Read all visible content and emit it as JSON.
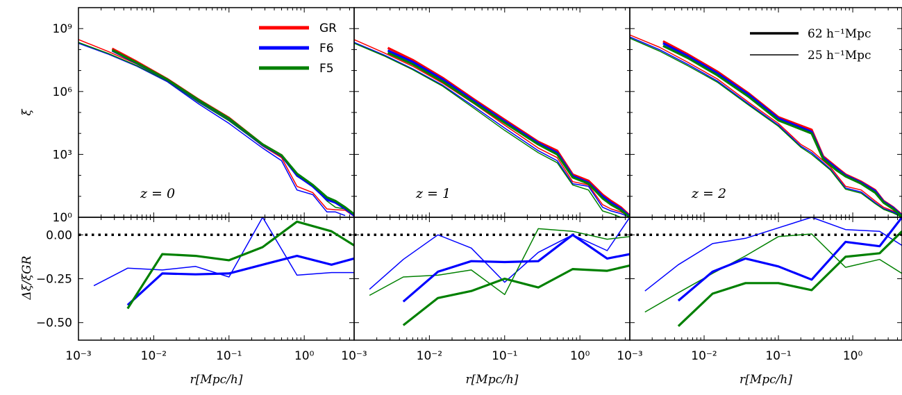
{
  "chart_data": {
    "type": "line",
    "layout": "3 columns x 2 rows, shared x axis per column, shared y axis per row",
    "x_axis": {
      "label": "r[Mpc/h]",
      "scale": "log",
      "range": [
        0.001,
        4.6
      ],
      "ticks": [
        "10⁻³",
        "10⁻²",
        "10⁻¹",
        "10⁰"
      ]
    },
    "top_y_axis": {
      "label": "ξ",
      "scale": "log",
      "range": [
        1,
        10000000000.0
      ],
      "ticks": [
        "10⁹",
        "10⁶",
        "10³",
        "10⁰"
      ]
    },
    "bottom_y_axis": {
      "label": "Δξ/ξGR",
      "scale": "linear",
      "range": [
        -0.6,
        0.1
      ],
      "ticks": [
        "0.00",
        "−0.25",
        "−0.50"
      ]
    },
    "reference_line": {
      "y": 0,
      "style": "dotted"
    },
    "colors": {
      "GR": "#ff0000",
      "F6": "#0000ff",
      "F5": "#008000"
    },
    "legend_models": [
      "GR",
      "F6",
      "F5"
    ],
    "legend_boxes": [
      "62 h⁻¹Mpc",
      "25 h⁻¹Mpc"
    ],
    "legend_style": {
      "62 h⁻¹Mpc": "thick",
      "25 h⁻¹Mpc": "thin"
    },
    "panels": [
      {
        "label": "z = 0",
        "xi": [
          {
            "model": "GR",
            "box": "25",
            "x": [
              0.001,
              0.0025,
              0.006,
              0.015,
              0.04,
              0.1,
              0.28,
              0.5,
              0.8,
              1.3,
              2.0,
              2.6,
              3.5,
              4.6
            ],
            "y": [
              300000000.0,
              80000000.0,
              20000000.0,
              3500000.0,
              350000.0,
              45000.0,
              2500.0,
              700,
              30,
              15,
              2.5,
              2.3,
              2.2,
              1.1
            ]
          },
          {
            "model": "F6",
            "box": "25",
            "x": [
              0.001,
              0.0025,
              0.006,
              0.015,
              0.04,
              0.1,
              0.28,
              0.5,
              0.8,
              1.3,
              2.0,
              2.6,
              3.5
            ],
            "y": [
              200000000.0,
              60000000.0,
              16000000.0,
              3000000.0,
              250000.0,
              30000.0,
              2000.0,
              500,
              20,
              12,
              1.8,
              1.8,
              1.2
            ]
          },
          {
            "model": "F5",
            "box": "25",
            "x": [
              0.001,
              0.0025,
              0.006,
              0.015,
              0.04,
              0.1,
              0.28,
              0.5,
              0.8,
              1.3,
              2.0,
              2.6,
              3.5,
              4.6
            ],
            "y": [
              220000000.0,
              65000000.0,
              17000000.0,
              3200000.0,
              300000.0,
              40000.0,
              2600.0,
              800,
              90,
              30,
              6,
              3,
              2.5,
              1.2
            ]
          },
          {
            "model": "GR",
            "box": "62",
            "x": [
              0.0028,
              0.006,
              0.015,
              0.04,
              0.1,
              0.28,
              0.5,
              0.8,
              1.3,
              2.0,
              2.6,
              3.5,
              4.6
            ],
            "y": [
              110000000.0,
              26000000.0,
              4000000.0,
              400000.0,
              55000.0,
              3000.0,
              900,
              110,
              32,
              8,
              5.5,
              2.8,
              1.3
            ]
          },
          {
            "model": "F6",
            "box": "62",
            "x": [
              0.0028,
              0.006,
              0.015,
              0.04,
              0.1,
              0.28,
              0.5,
              0.8,
              1.3,
              2.0,
              2.6,
              3.5,
              4.6
            ],
            "y": [
              90000000.0,
              22000000.0,
              3600000.0,
              360000.0,
              50000.0,
              2800.0,
              850,
              100,
              30,
              7,
              5,
              2.6,
              1.2
            ]
          },
          {
            "model": "F5",
            "box": "62",
            "x": [
              0.0028,
              0.006,
              0.015,
              0.04,
              0.1,
              0.28,
              0.5,
              0.8,
              1.3,
              2.0,
              2.6,
              3.5,
              4.6
            ],
            "y": [
              95000000.0,
              23000000.0,
              3800000.0,
              380000.0,
              52000.0,
              3000.0,
              900,
              120,
              35,
              9,
              6,
              3,
              1.4
            ]
          }
        ],
        "delta": [
          {
            "model": "F6",
            "box": "25",
            "x": [
              0.0016,
              0.0045,
              0.013,
              0.036,
              0.1,
              0.28,
              0.8,
              2.3,
              4.6
            ],
            "y": [
              -0.29,
              -0.19,
              -0.2,
              -0.18,
              -0.24,
              0.1,
              -0.23,
              -0.215,
              -0.215
            ]
          },
          {
            "model": "F6",
            "box": "62",
            "x": [
              0.0045,
              0.013,
              0.036,
              0.1,
              0.28,
              0.8,
              2.3,
              4.6
            ],
            "y": [
              -0.4,
              -0.22,
              -0.225,
              -0.22,
              -0.17,
              -0.12,
              -0.17,
              -0.135
            ]
          },
          {
            "model": "F5",
            "box": "62",
            "x": [
              0.0045,
              0.013,
              0.036,
              0.1,
              0.28,
              0.8,
              2.3,
              4.6
            ],
            "y": [
              -0.42,
              -0.11,
              -0.12,
              -0.145,
              -0.07,
              0.075,
              0.02,
              -0.06
            ]
          }
        ]
      },
      {
        "label": "z = 1",
        "xi": [
          {
            "model": "GR",
            "box": "25",
            "x": [
              0.001,
              0.0025,
              0.006,
              0.015,
              0.04,
              0.1,
              0.28,
              0.5,
              0.8,
              1.3,
              2.0,
              2.6,
              3.5,
              4.6
            ],
            "y": [
              300000000.0,
              70000000.0,
              16000000.0,
              2500000.0,
              250000.0,
              25000.0,
              2000.0,
              700,
              50,
              35,
              4,
              2.5,
              1.8,
              1.1
            ]
          },
          {
            "model": "F6",
            "box": "25",
            "x": [
              0.001,
              0.0025,
              0.006,
              0.015,
              0.04,
              0.1,
              0.28,
              0.5,
              0.8,
              1.3,
              2.0,
              2.6,
              3.5,
              4.6
            ],
            "y": [
              220000000.0,
              55000000.0,
              12000000.0,
              2000000.0,
              180000.0,
              18000.0,
              1500.0,
              500,
              40,
              30,
              3,
              2,
              1.5,
              1
            ]
          },
          {
            "model": "F5",
            "box": "25",
            "x": [
              0.001,
              0.0025,
              0.006,
              0.015,
              0.04,
              0.1,
              0.28,
              0.5,
              0.8,
              1.3,
              2.0,
              2.6,
              3.5
            ],
            "y": [
              200000000.0,
              50000000.0,
              11000000.0,
              1800000.0,
              150000.0,
              14000.0,
              1200.0,
              400,
              35,
              20,
              2,
              1.5,
              1
            ]
          },
          {
            "model": "GR",
            "box": "62",
            "x": [
              0.0028,
              0.006,
              0.015,
              0.04,
              0.1,
              0.28,
              0.5,
              0.8,
              1.3,
              2.0,
              2.6,
              3.5,
              4.6
            ],
            "y": [
              120000000.0,
              32000000.0,
              4500000.0,
              400000.0,
              45000.0,
              4000.0,
              1500.0,
              110,
              55,
              12,
              6,
              3,
              1.2
            ]
          },
          {
            "model": "F6",
            "box": "62",
            "x": [
              0.0028,
              0.006,
              0.015,
              0.04,
              0.1,
              0.28,
              0.5,
              0.8,
              1.3,
              2.0,
              2.6,
              3.5,
              4.6
            ],
            "y": [
              90000000.0,
              26000000.0,
              3800000.0,
              340000.0,
              38000.0,
              3500.0,
              1200.0,
              95,
              45,
              10,
              5,
              2.6,
              1.1
            ]
          },
          {
            "model": "F5",
            "box": "62",
            "x": [
              0.0028,
              0.006,
              0.015,
              0.04,
              0.1,
              0.28,
              0.5,
              0.8,
              1.3,
              2.0,
              2.6,
              3.5,
              4.6
            ],
            "y": [
              70000000.0,
              20000000.0,
              3000000.0,
              280000.0,
              32000.0,
              3000.0,
              1000.0,
              80,
              40,
              8,
              4,
              2.2,
              1
            ]
          }
        ],
        "delta": [
          {
            "model": "F6",
            "box": "25",
            "x": [
              0.0016,
              0.0045,
              0.013,
              0.036,
              0.1,
              0.28,
              0.8,
              2.3,
              4.6
            ],
            "y": [
              -0.31,
              -0.14,
              0.0,
              -0.075,
              -0.27,
              -0.1,
              0.0,
              -0.09,
              0.1
            ]
          },
          {
            "model": "F5",
            "box": "25",
            "x": [
              0.0016,
              0.0045,
              0.013,
              0.036,
              0.1,
              0.28,
              0.8,
              2.3,
              4.6
            ],
            "y": [
              -0.345,
              -0.24,
              -0.23,
              -0.2,
              -0.34,
              0.035,
              0.02,
              -0.025,
              -0.01
            ]
          },
          {
            "model": "F6",
            "box": "62",
            "x": [
              0.0045,
              0.013,
              0.036,
              0.1,
              0.28,
              0.8,
              2.3,
              4.6
            ],
            "y": [
              -0.38,
              -0.21,
              -0.15,
              -0.155,
              -0.15,
              0.0,
              -0.135,
              -0.11
            ]
          },
          {
            "model": "F5",
            "box": "62",
            "x": [
              0.0045,
              0.013,
              0.036,
              0.1,
              0.28,
              0.8,
              2.3,
              4.6
            ],
            "y": [
              -0.515,
              -0.36,
              -0.32,
              -0.25,
              -0.3,
              -0.195,
              -0.205,
              -0.175
            ]
          }
        ]
      },
      {
        "label": "z = 2",
        "xi": [
          {
            "model": "GR",
            "box": "25",
            "x": [
              0.001,
              0.0025,
              0.006,
              0.015,
              0.04,
              0.1,
              0.2,
              0.28,
              0.5,
              0.8,
              1.3,
              2.0,
              2.6,
              3.5,
              4.6
            ],
            "y": [
              500000000.0,
              130000000.0,
              25000000.0,
              4000000.0,
              300000.0,
              30000.0,
              3000.0,
              1500.0,
              250,
              30,
              20,
              6,
              3,
              2,
              1.2
            ]
          },
          {
            "model": "F6",
            "box": "25",
            "x": [
              0.001,
              0.0025,
              0.006,
              0.015,
              0.04,
              0.1,
              0.2,
              0.28,
              0.5,
              0.8,
              1.3,
              2.0,
              2.6,
              3.5,
              4.6
            ],
            "y": [
              400000000.0,
              100000000.0,
              20000000.0,
              3200000.0,
              250000.0,
              25000.0,
              2500.0,
              1200.0,
              200,
              25,
              16,
              5,
              2.6,
              1.8,
              1.1
            ]
          },
          {
            "model": "F5",
            "box": "25",
            "x": [
              0.001,
              0.0025,
              0.006,
              0.015,
              0.04,
              0.1,
              0.2,
              0.28,
              0.5,
              0.8,
              1.3,
              2.0,
              2.6,
              3.5,
              4.6
            ],
            "y": [
              350000000.0,
              85000000.0,
              17000000.0,
              2800000.0,
              220000.0,
              22000.0,
              2200.0,
              1000.0,
              180,
              22,
              14,
              4.5,
              2.4,
              1.6,
              1
            ]
          },
          {
            "model": "GR",
            "box": "62",
            "x": [
              0.0028,
              0.006,
              0.015,
              0.04,
              0.1,
              0.28,
              0.4,
              0.6,
              0.8,
              1.3,
              2.0,
              2.6,
              3.5,
              4.6
            ],
            "y": [
              250000000.0,
              60000000.0,
              9000000.0,
              800000.0,
              60000.0,
              15000.0,
              800,
              250,
              110,
              50,
              20,
              6,
              3,
              1.3
            ]
          },
          {
            "model": "F6",
            "box": "62",
            "x": [
              0.0028,
              0.006,
              0.015,
              0.04,
              0.1,
              0.28,
              0.4,
              0.6,
              0.8,
              1.3,
              2.0,
              2.6,
              3.5,
              4.6
            ],
            "y": [
              200000000.0,
              50000000.0,
              7500000.0,
              700000.0,
              52000.0,
              12000.0,
              700,
              220,
              100,
              45,
              18,
              5.5,
              2.8,
              1.2
            ]
          },
          {
            "model": "F5",
            "box": "62",
            "x": [
              0.0028,
              0.006,
              0.015,
              0.04,
              0.1,
              0.28,
              0.4,
              0.6,
              0.8,
              1.3,
              2.0,
              2.6,
              3.5,
              4.6
            ],
            "y": [
              150000000.0,
              40000000.0,
              6000000.0,
              550000.0,
              42000.0,
              10000.0,
              600,
              180,
              90,
              40,
              15,
              5,
              2.5,
              1.1
            ]
          }
        ],
        "delta": [
          {
            "model": "F6",
            "box": "25",
            "x": [
              0.0016,
              0.0045,
              0.013,
              0.036,
              0.1,
              0.28,
              0.8,
              2.3,
              4.6
            ],
            "y": [
              -0.32,
              -0.17,
              -0.05,
              -0.02,
              0.04,
              0.1,
              0.03,
              0.02,
              -0.06
            ]
          },
          {
            "model": "F5",
            "box": "25",
            "x": [
              0.0016,
              0.0045,
              0.013,
              0.036,
              0.1,
              0.28,
              0.8,
              2.3,
              4.6
            ],
            "y": [
              -0.44,
              -0.33,
              -0.22,
              -0.12,
              -0.01,
              0.005,
              -0.185,
              -0.14,
              -0.22
            ]
          },
          {
            "model": "F6",
            "box": "62",
            "x": [
              0.0045,
              0.013,
              0.036,
              0.1,
              0.28,
              0.8,
              2.3,
              4.6
            ],
            "y": [
              -0.375,
              -0.21,
              -0.135,
              -0.18,
              -0.255,
              -0.04,
              -0.065,
              0.1
            ]
          },
          {
            "model": "F5",
            "box": "62",
            "x": [
              0.0045,
              0.013,
              0.036,
              0.1,
              0.28,
              0.8,
              2.3,
              4.6
            ],
            "y": [
              -0.52,
              -0.335,
              -0.275,
              -0.275,
              -0.315,
              -0.125,
              -0.105,
              0.02
            ]
          }
        ]
      }
    ]
  }
}
